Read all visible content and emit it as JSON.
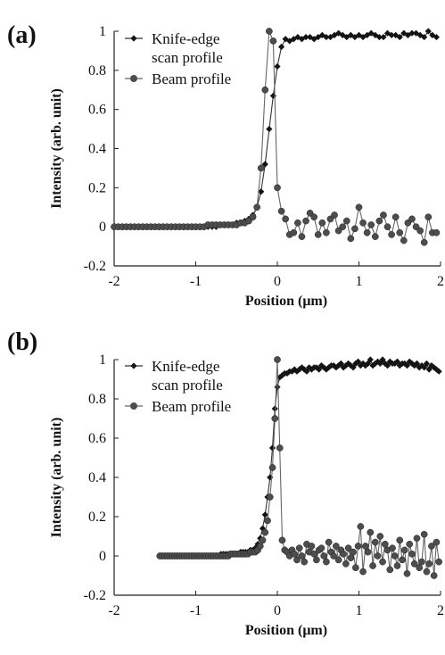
{
  "chart_data": [
    {
      "type": "line",
      "panel_label": "(a)",
      "xlabel": "Position (μm)",
      "ylabel": "Intensity (arb. unit)",
      "xlim": [
        -2,
        2
      ],
      "ylim": [
        -0.2,
        1.0
      ],
      "xticks": [
        "-2",
        "-1",
        "0",
        "1",
        "2"
      ],
      "yticks": [
        "-0.2",
        "0",
        "0.2",
        "0.4",
        "0.6",
        "0.8",
        "1"
      ],
      "grid": false,
      "legend_position": "top-right",
      "series": [
        {
          "name": "Knife-edge scan profile",
          "marker": "diamond",
          "x": [
            -2.0,
            -1.95,
            -1.9,
            -1.85,
            -1.8,
            -1.75,
            -1.7,
            -1.65,
            -1.6,
            -1.55,
            -1.5,
            -1.45,
            -1.4,
            -1.35,
            -1.3,
            -1.25,
            -1.2,
            -1.15,
            -1.1,
            -1.05,
            -1.0,
            -0.95,
            -0.9,
            -0.85,
            -0.8,
            -0.75,
            -0.7,
            -0.65,
            -0.6,
            -0.55,
            -0.5,
            -0.45,
            -0.4,
            -0.35,
            -0.3,
            -0.25,
            -0.2,
            -0.15,
            -0.1,
            -0.05,
            0.0,
            0.05,
            0.1,
            0.15,
            0.2,
            0.25,
            0.3,
            0.35,
            0.4,
            0.45,
            0.5,
            0.55,
            0.6,
            0.65,
            0.7,
            0.75,
            0.8,
            0.85,
            0.9,
            0.95,
            1.0,
            1.05,
            1.1,
            1.15,
            1.2,
            1.25,
            1.3,
            1.35,
            1.4,
            1.45,
            1.5,
            1.55,
            1.6,
            1.65,
            1.7,
            1.75,
            1.8,
            1.85,
            1.9,
            1.95
          ],
          "y": [
            0.0,
            0.0,
            0.0,
            0.0,
            0.0,
            0.0,
            0.0,
            0.0,
            0.0,
            0.0,
            0.0,
            0.0,
            0.0,
            0.0,
            0.0,
            0.0,
            0.0,
            0.0,
            0.0,
            0.0,
            0.0,
            0.0,
            0.0,
            0.0,
            0.0,
            0.0,
            0.01,
            0.01,
            0.01,
            0.01,
            0.02,
            0.02,
            0.03,
            0.04,
            0.06,
            0.1,
            0.18,
            0.32,
            0.5,
            0.67,
            0.82,
            0.92,
            0.96,
            0.95,
            0.96,
            0.97,
            0.96,
            0.97,
            0.97,
            0.96,
            0.97,
            0.98,
            0.97,
            0.97,
            0.98,
            0.99,
            0.98,
            0.97,
            0.98,
            0.97,
            0.98,
            0.97,
            0.98,
            0.99,
            0.98,
            0.97,
            0.97,
            0.99,
            0.98,
            0.98,
            0.97,
            0.99,
            0.98,
            0.99,
            0.99,
            0.98,
            0.97,
            1.0,
            0.98,
            0.97
          ]
        },
        {
          "name": "Beam profile",
          "marker": "circle",
          "x": [
            -2.0,
            -1.95,
            -1.9,
            -1.85,
            -1.8,
            -1.75,
            -1.7,
            -1.65,
            -1.6,
            -1.55,
            -1.5,
            -1.45,
            -1.4,
            -1.35,
            -1.3,
            -1.25,
            -1.2,
            -1.15,
            -1.1,
            -1.05,
            -1.0,
            -0.95,
            -0.9,
            -0.85,
            -0.8,
            -0.75,
            -0.7,
            -0.65,
            -0.6,
            -0.55,
            -0.5,
            -0.45,
            -0.4,
            -0.35,
            -0.3,
            -0.25,
            -0.2,
            -0.15,
            -0.1,
            -0.05,
            0.0,
            0.05,
            0.1,
            0.15,
            0.2,
            0.25,
            0.3,
            0.35,
            0.4,
            0.45,
            0.5,
            0.55,
            0.6,
            0.65,
            0.7,
            0.75,
            0.8,
            0.85,
            0.9,
            0.95,
            1.0,
            1.05,
            1.1,
            1.15,
            1.2,
            1.25,
            1.3,
            1.35,
            1.4,
            1.45,
            1.5,
            1.55,
            1.6,
            1.65,
            1.7,
            1.75,
            1.8,
            1.85,
            1.9,
            1.95
          ],
          "y": [
            0.0,
            0.0,
            0.0,
            0.0,
            0.0,
            0.0,
            0.0,
            0.0,
            0.0,
            0.0,
            0.0,
            0.0,
            0.0,
            0.0,
            0.0,
            0.0,
            0.0,
            0.0,
            0.0,
            0.0,
            0.0,
            0.0,
            0.0,
            0.01,
            0.01,
            0.01,
            0.01,
            0.01,
            0.01,
            0.01,
            0.01,
            0.02,
            0.02,
            0.03,
            0.05,
            0.1,
            0.3,
            0.7,
            1.0,
            0.95,
            0.2,
            0.08,
            0.04,
            -0.04,
            -0.03,
            0.02,
            -0.05,
            0.03,
            0.07,
            0.05,
            -0.04,
            0.02,
            -0.03,
            0.04,
            0.06,
            -0.02,
            0.0,
            0.03,
            -0.06,
            -0.01,
            0.1,
            0.02,
            -0.03,
            0.01,
            -0.05,
            0.03,
            0.06,
            0.0,
            -0.04,
            0.05,
            -0.03,
            -0.07,
            0.02,
            0.04,
            0.0,
            -0.02,
            -0.08,
            0.05,
            -0.03,
            -0.03
          ]
        }
      ]
    },
    {
      "type": "line",
      "panel_label": "(b)",
      "xlabel": "Position (μm)",
      "ylabel": "Intensity (arb. unit)",
      "xlim": [
        -2,
        2
      ],
      "ylim": [
        -0.2,
        1.0
      ],
      "xticks": [
        "-2",
        "-1",
        "0",
        "1",
        "2"
      ],
      "yticks": [
        "-0.2",
        "0",
        "0.2",
        "0.4",
        "0.6",
        "0.8",
        "1"
      ],
      "grid": false,
      "legend_position": "top-right",
      "series": [
        {
          "name": "Knife-edge scan profile",
          "marker": "diamond",
          "x": [
            -1.44,
            -1.41,
            -1.38,
            -1.35,
            -1.32,
            -1.29,
            -1.26,
            -1.23,
            -1.2,
            -1.17,
            -1.14,
            -1.11,
            -1.08,
            -1.05,
            -1.02,
            -0.99,
            -0.96,
            -0.93,
            -0.9,
            -0.87,
            -0.84,
            -0.81,
            -0.78,
            -0.75,
            -0.72,
            -0.69,
            -0.66,
            -0.63,
            -0.6,
            -0.57,
            -0.54,
            -0.51,
            -0.48,
            -0.45,
            -0.42,
            -0.39,
            -0.36,
            -0.33,
            -0.3,
            -0.27,
            -0.24,
            -0.21,
            -0.18,
            -0.15,
            -0.12,
            -0.09,
            -0.06,
            -0.03,
            0.0,
            0.03,
            0.06,
            0.09,
            0.12,
            0.15,
            0.18,
            0.21,
            0.24,
            0.27,
            0.3,
            0.33,
            0.36,
            0.39,
            0.42,
            0.45,
            0.48,
            0.51,
            0.54,
            0.57,
            0.6,
            0.63,
            0.66,
            0.69,
            0.72,
            0.75,
            0.78,
            0.81,
            0.84,
            0.87,
            0.9,
            0.93,
            0.96,
            0.99,
            1.02,
            1.05,
            1.08,
            1.11,
            1.14,
            1.17,
            1.2,
            1.23,
            1.26,
            1.29,
            1.32,
            1.35,
            1.38,
            1.41,
            1.44,
            1.47,
            1.5,
            1.53,
            1.56,
            1.59,
            1.62,
            1.65,
            1.68,
            1.71,
            1.74,
            1.77,
            1.8,
            1.83,
            1.86,
            1.89,
            1.92,
            1.95,
            1.98
          ],
          "y": [
            0.0,
            0.0,
            0.0,
            0.0,
            0.0,
            0.0,
            0.0,
            0.0,
            0.0,
            0.0,
            0.0,
            0.0,
            0.0,
            0.0,
            0.0,
            0.0,
            0.0,
            0.0,
            0.0,
            0.0,
            0.0,
            0.0,
            0.0,
            0.0,
            0.0,
            0.01,
            0.01,
            0.01,
            0.01,
            0.01,
            0.01,
            0.01,
            0.01,
            0.02,
            0.02,
            0.02,
            0.02,
            0.03,
            0.03,
            0.04,
            0.06,
            0.09,
            0.14,
            0.21,
            0.3,
            0.4,
            0.55,
            0.75,
            0.86,
            0.91,
            0.92,
            0.93,
            0.93,
            0.94,
            0.94,
            0.95,
            0.94,
            0.95,
            0.96,
            0.95,
            0.94,
            0.96,
            0.95,
            0.96,
            0.96,
            0.95,
            0.97,
            0.96,
            0.95,
            0.96,
            0.97,
            0.97,
            0.96,
            0.97,
            0.98,
            0.96,
            0.97,
            0.98,
            0.97,
            0.96,
            0.98,
            0.99,
            0.97,
            0.98,
            0.97,
            0.98,
            1.0,
            0.97,
            0.98,
            0.99,
            0.98,
            1.0,
            0.98,
            0.97,
            0.99,
            0.98,
            0.98,
            0.99,
            0.97,
            0.98,
            0.98,
            0.97,
            0.99,
            0.98,
            0.97,
            0.98,
            0.96,
            0.97,
            0.96,
            0.98,
            0.95,
            0.97,
            0.96,
            0.95,
            0.94
          ]
        },
        {
          "name": "Beam profile",
          "marker": "circle",
          "x": [
            -1.44,
            -1.41,
            -1.38,
            -1.35,
            -1.32,
            -1.29,
            -1.26,
            -1.23,
            -1.2,
            -1.17,
            -1.14,
            -1.11,
            -1.08,
            -1.05,
            -1.02,
            -0.99,
            -0.96,
            -0.93,
            -0.9,
            -0.87,
            -0.84,
            -0.81,
            -0.78,
            -0.75,
            -0.72,
            -0.69,
            -0.66,
            -0.63,
            -0.6,
            -0.57,
            -0.54,
            -0.51,
            -0.48,
            -0.45,
            -0.42,
            -0.39,
            -0.36,
            -0.33,
            -0.3,
            -0.27,
            -0.24,
            -0.21,
            -0.18,
            -0.15,
            -0.12,
            -0.09,
            -0.06,
            -0.03,
            0.0,
            0.03,
            0.06,
            0.09,
            0.12,
            0.15,
            0.18,
            0.21,
            0.24,
            0.27,
            0.3,
            0.33,
            0.36,
            0.39,
            0.42,
            0.45,
            0.48,
            0.51,
            0.54,
            0.57,
            0.6,
            0.63,
            0.66,
            0.69,
            0.72,
            0.75,
            0.78,
            0.81,
            0.84,
            0.87,
            0.9,
            0.93,
            0.96,
            0.99,
            1.02,
            1.05,
            1.08,
            1.11,
            1.14,
            1.17,
            1.2,
            1.23,
            1.26,
            1.29,
            1.32,
            1.35,
            1.38,
            1.41,
            1.44,
            1.47,
            1.5,
            1.53,
            1.56,
            1.59,
            1.62,
            1.65,
            1.68,
            1.71,
            1.74,
            1.77,
            1.8,
            1.83,
            1.86,
            1.89,
            1.92,
            1.95,
            1.98
          ],
          "y": [
            0.0,
            0.0,
            0.0,
            0.0,
            0.0,
            0.0,
            0.0,
            0.0,
            0.0,
            0.0,
            0.0,
            0.0,
            0.0,
            0.0,
            0.0,
            0.0,
            0.0,
            0.0,
            0.0,
            0.0,
            0.0,
            0.0,
            0.0,
            0.0,
            0.0,
            0.0,
            0.0,
            0.0,
            0.0,
            0.01,
            0.01,
            0.01,
            0.01,
            0.01,
            0.01,
            0.01,
            0.01,
            0.02,
            0.02,
            0.02,
            0.03,
            0.05,
            0.08,
            0.12,
            0.18,
            0.3,
            0.45,
            0.7,
            1.0,
            0.55,
            0.08,
            0.03,
            0.02,
            0.0,
            0.03,
            0.01,
            -0.02,
            0.04,
            0.0,
            -0.03,
            0.06,
            0.02,
            0.05,
            0.01,
            -0.02,
            0.03,
            0.04,
            0.0,
            -0.03,
            0.07,
            0.02,
            0.0,
            0.05,
            -0.02,
            0.03,
            0.01,
            -0.04,
            0.04,
            -0.01,
            0.02,
            -0.06,
            0.05,
            0.15,
            -0.08,
            0.05,
            0.02,
            0.12,
            -0.05,
            0.07,
            0.0,
            0.1,
            -0.03,
            0.06,
            0.03,
            -0.07,
            0.04,
            0.0,
            -0.05,
            0.08,
            -0.02,
            0.03,
            -0.09,
            0.06,
            0.01,
            -0.04,
            0.09,
            -0.06,
            -0.03,
            0.11,
            -0.08,
            -0.04,
            0.05,
            -0.1,
            0.07,
            -0.03
          ]
        }
      ]
    }
  ]
}
